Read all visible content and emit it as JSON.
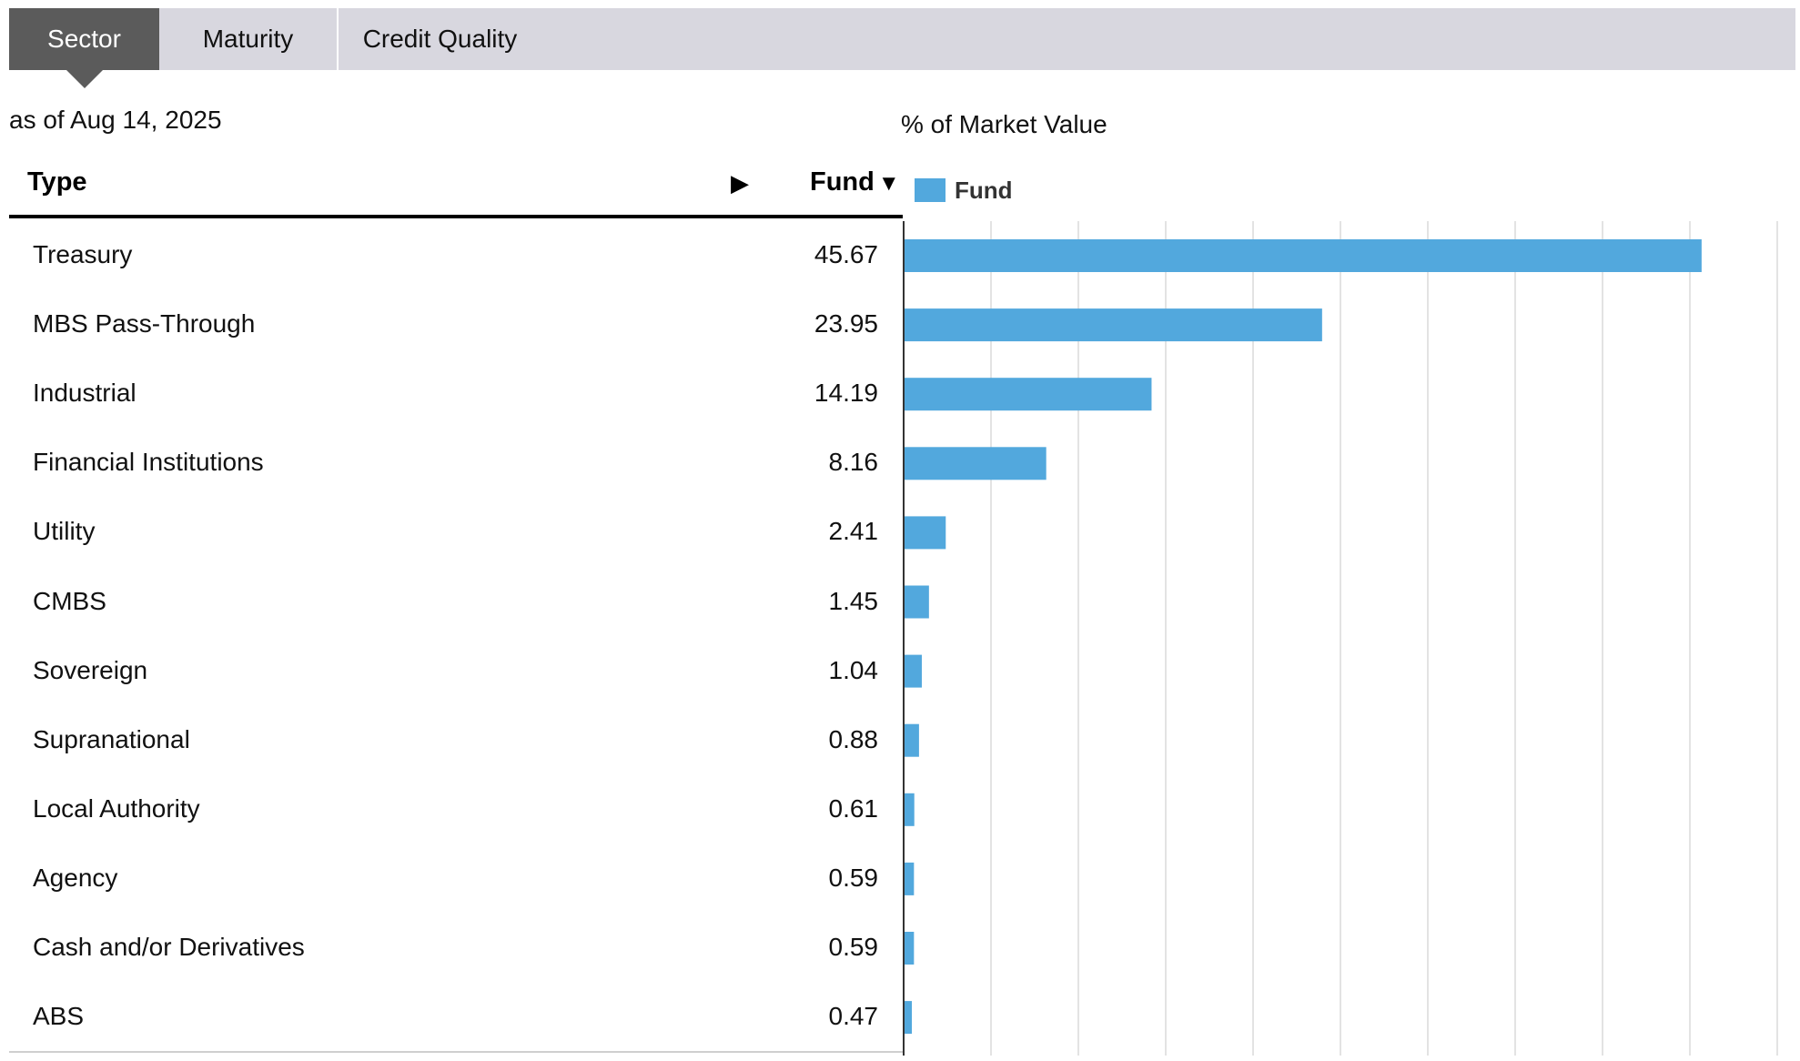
{
  "tabs": [
    {
      "label": "Sector",
      "active": true
    },
    {
      "label": "Maturity",
      "active": false
    },
    {
      "label": "Credit Quality",
      "active": false
    }
  ],
  "as_of": "as of Aug 14, 2025",
  "table": {
    "col_type": "Type",
    "col_fund": "Fund",
    "sort_arrow": "▶",
    "sort_caret": "▼"
  },
  "chart_data": {
    "type": "bar",
    "orientation": "horizontal",
    "title": "% of Market Value",
    "categories": [
      "Treasury",
      "MBS Pass-Through",
      "Industrial",
      "Financial Institutions",
      "Utility",
      "CMBS",
      "Sovereign",
      "Supranational",
      "Local Authority",
      "Agency",
      "Cash and/or Derivatives",
      "ABS"
    ],
    "series": [
      {
        "name": "Fund",
        "values": [
          45.67,
          23.95,
          14.19,
          8.16,
          2.41,
          1.45,
          1.04,
          0.88,
          0.61,
          0.59,
          0.59,
          0.47
        ],
        "color": "#52a8dd"
      }
    ],
    "display_values": [
      "45.67",
      "23.95",
      "14.19",
      "8.16",
      "2.41",
      "1.45",
      "1.04",
      "0.88",
      "0.61",
      "0.59",
      "0.59",
      "0.47"
    ],
    "xlim": [
      0,
      50
    ],
    "grid": true,
    "legend": "top-left"
  }
}
